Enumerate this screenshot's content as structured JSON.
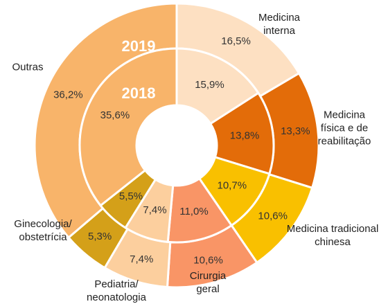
{
  "chart_data": {
    "type": "nested-donut",
    "categories": [
      "Medicina interna",
      "Medicina física e de reabilitação",
      "Medicina tradicional chinesa",
      "Cirurgia geral",
      "Pediatria/ neonatologia",
      "Ginecologia/ obstetrícia",
      "Outras"
    ],
    "colors": [
      "#fde0c2",
      "#e36c09",
      "#f9c000",
      "#f99566",
      "#fccf9e",
      "#d4a019",
      "#f8b46a"
    ],
    "series": [
      {
        "name": "2019",
        "values": [
          16.5,
          13.3,
          10.6,
          10.6,
          7.4,
          5.3,
          36.2
        ],
        "value_labels": [
          "16,5%",
          "13,3%",
          "10,6%",
          "10,6%",
          "7,4%",
          "5,3%",
          "36,2%"
        ]
      },
      {
        "name": "2018",
        "values": [
          15.9,
          13.8,
          10.7,
          11.0,
          7.4,
          5.5,
          35.6
        ],
        "value_labels": [
          "15,9%",
          "13,8%",
          "10,7%",
          "11,0%",
          "7,4%",
          "5,5%",
          "35,6%"
        ]
      }
    ]
  }
}
